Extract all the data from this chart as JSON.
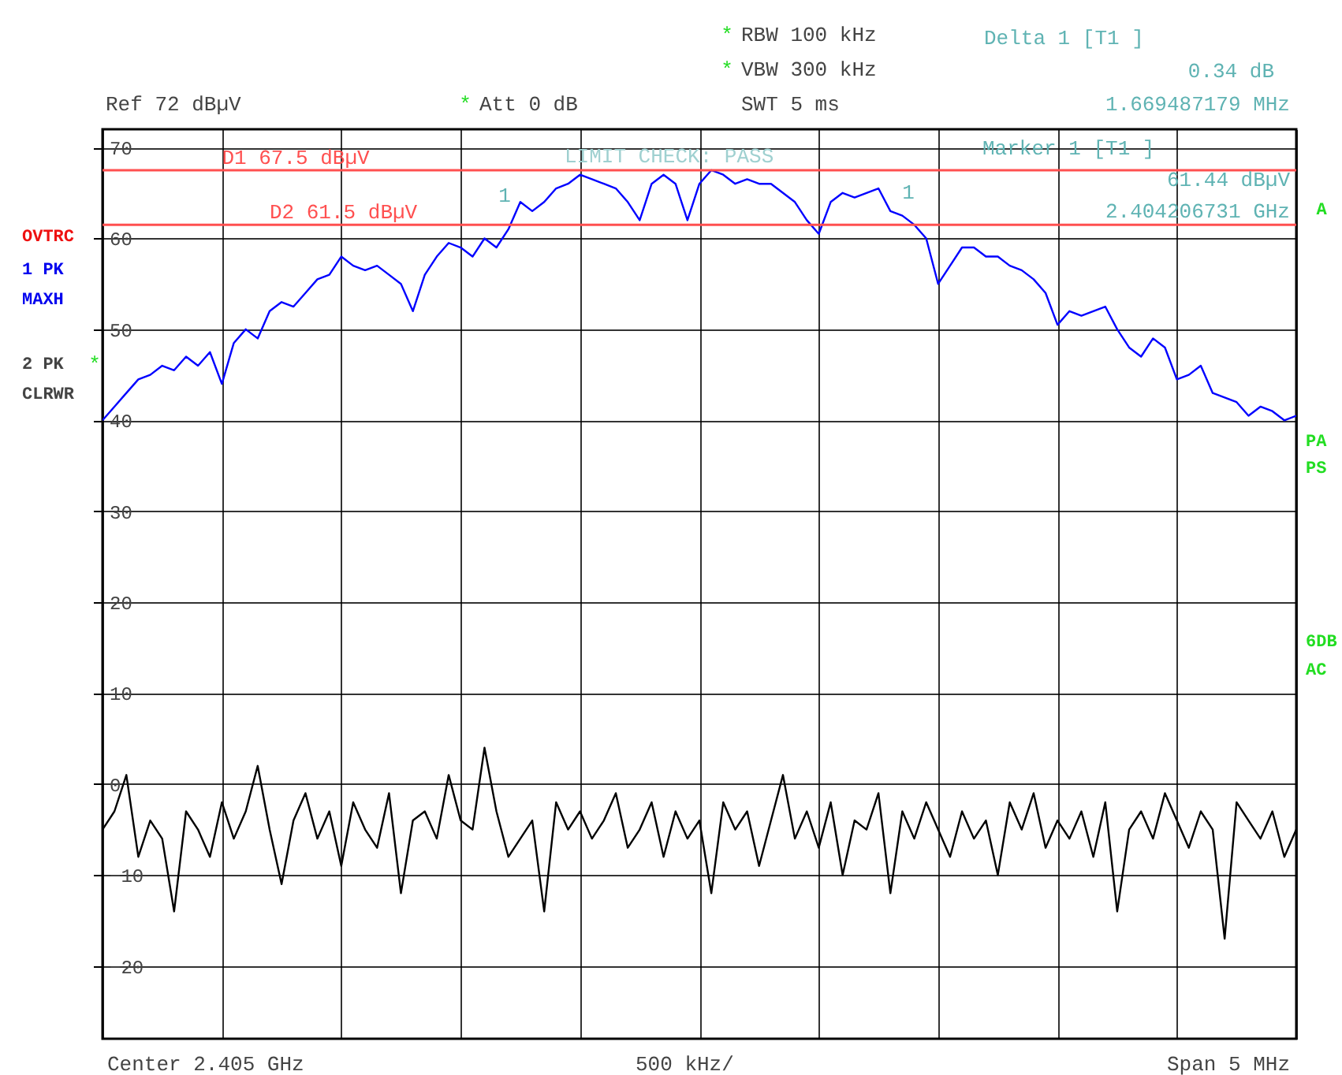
{
  "chart_data": {
    "type": "line",
    "categories": [
      null,
      null,
      null,
      null,
      null,
      null,
      null,
      null,
      null,
      null,
      null,
      null,
      null,
      null,
      null,
      null,
      null,
      null,
      null,
      null,
      null,
      null,
      null,
      null,
      null,
      null,
      null,
      null,
      null,
      null,
      null,
      null,
      null,
      null,
      null,
      null,
      null,
      null,
      null,
      null,
      null,
      null,
      null,
      null,
      null,
      null,
      null,
      null,
      null,
      null,
      null,
      null,
      null,
      null,
      null,
      null,
      null,
      null,
      null,
      null,
      null,
      null,
      null,
      null,
      null,
      null,
      null,
      null,
      null,
      null,
      null,
      null,
      null,
      null,
      null,
      null,
      null,
      null,
      null,
      null,
      null,
      null,
      null,
      null,
      null,
      null,
      null,
      null,
      null,
      null,
      null,
      null,
      null,
      null,
      null,
      null,
      null,
      null,
      null,
      null,
      null
    ],
    "series": [
      {
        "color": "#0000ff",
        "values": [
          40,
          41.5,
          43,
          44.5,
          45,
          46,
          45.5,
          47,
          46,
          47.5,
          44,
          48.5,
          50,
          49,
          52,
          53,
          52.5,
          54,
          55.5,
          56,
          58,
          57,
          56.5,
          57,
          56,
          55,
          52,
          56,
          58,
          59.5,
          59,
          58,
          60,
          59,
          61,
          64,
          63,
          64,
          65.5,
          66,
          67,
          66.5,
          66,
          65.5,
          64,
          62,
          66,
          67,
          66,
          62,
          66,
          67.5,
          67,
          66,
          66.5,
          66,
          66,
          65,
          64,
          62,
          60.5,
          64,
          65,
          64.5,
          65,
          65.5,
          63,
          62.5,
          61.5,
          60,
          55,
          57,
          59,
          59,
          58,
          58,
          57,
          56.5,
          55.5,
          54,
          50.5,
          52,
          51.5,
          52,
          52.5,
          50,
          48,
          47,
          49,
          48,
          44.5,
          45,
          46,
          43,
          42.5,
          42,
          40.5,
          41.5,
          41,
          40,
          40.5
        ]
      },
      {
        "color": "#000000",
        "values": [
          -5,
          -3,
          1,
          -8,
          -4,
          -6,
          -14,
          -3,
          -5,
          -8,
          -2,
          -6,
          -3,
          2,
          -5,
          -11,
          -4,
          -1,
          -6,
          -3,
          -9,
          -2,
          -5,
          -7,
          -1,
          -12,
          -4,
          -3,
          -6,
          1,
          -4,
          -5,
          4,
          -3,
          -8,
          -6,
          -4,
          -14,
          -2,
          -5,
          -3,
          -6,
          -4,
          -1,
          -7,
          -5,
          -2,
          -8,
          -3,
          -6,
          -4,
          -12,
          -2,
          -5,
          -3,
          -9,
          -4,
          1,
          -6,
          -3,
          -7,
          -2,
          -10,
          -4,
          -5,
          -1,
          -12,
          -3,
          -6,
          -2,
          -5,
          -8,
          -3,
          -6,
          -4,
          -10,
          -2,
          -5,
          -1,
          -7,
          -4,
          -6,
          -3,
          -8,
          -2,
          -14,
          -5,
          -3,
          -6,
          -1,
          -4,
          -7,
          -3,
          -5,
          -17,
          -2,
          -4,
          -6,
          -3,
          -8,
          -5
        ]
      }
    ],
    "ylim": [
      -28,
      72
    ],
    "yticks": [
      70,
      60,
      50,
      40,
      30,
      20,
      10,
      0,
      -10,
      -20
    ],
    "grid": true,
    "ref_lines": [
      {
        "axis": "y",
        "value": 67.5,
        "label": "D1 67.5 dBµV",
        "color": "#ff5050"
      },
      {
        "axis": "y",
        "value": 61.5,
        "label": "D2 61.5 dBµV",
        "color": "#ff5050"
      }
    ],
    "annotations": [
      "RBW 100 kHz",
      "VBW 300 kHz",
      "SWT 5 ms",
      "Ref 72 dBµV",
      "Att 0 dB",
      "Delta 1 [T1 ]",
      "0.34 dB",
      "1.669487179 MHz",
      "Marker 1 [T1 ]",
      "61.44 dBµV",
      "2.404206731 GHz",
      "OVTRC",
      "1 PK",
      "MAXH",
      "2 PK",
      "CLRWR",
      "A",
      "PA",
      "PS",
      "6DB",
      "AC",
      "Center 2.405 GHz",
      "500 kHz/",
      "Span 5 MHz",
      "LIMIT CHECK: PASS",
      "1",
      "1",
      "*",
      "*",
      "*",
      "*"
    ]
  }
}
